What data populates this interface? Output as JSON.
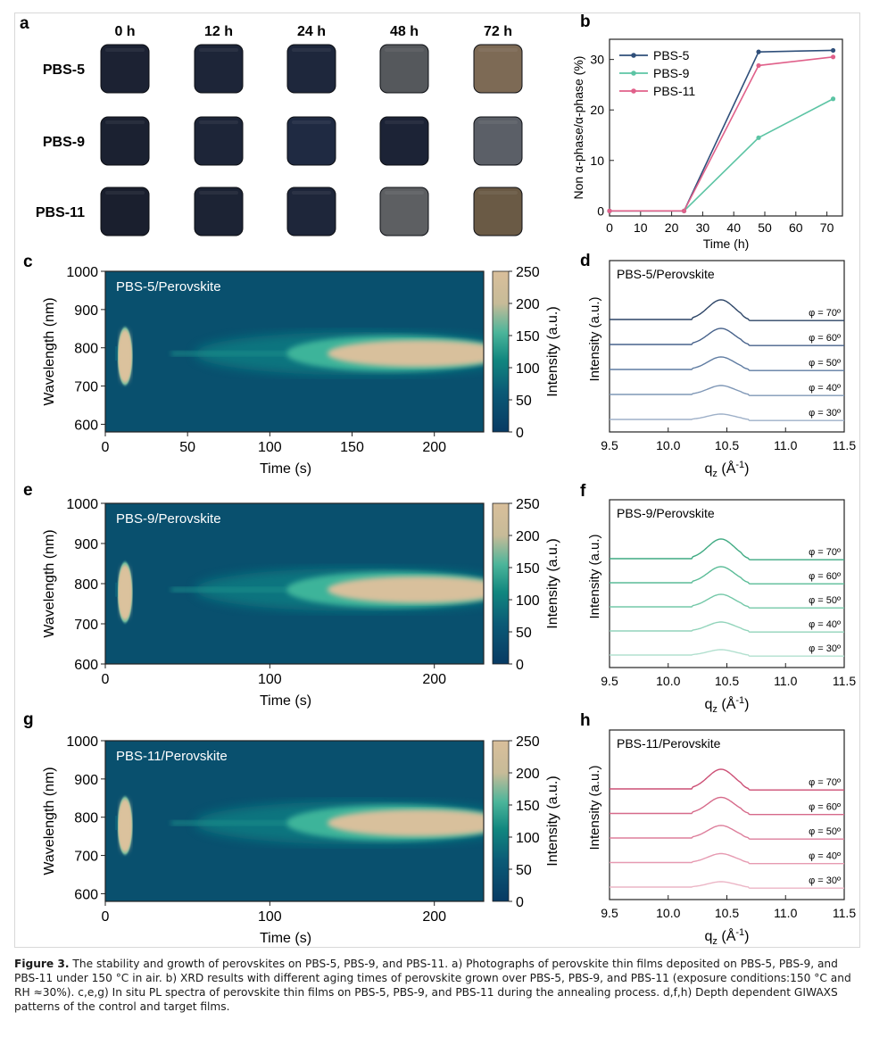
{
  "figure": {
    "caption_label": "Figure 3.",
    "caption_text": "The stability and growth of perovskites on PBS-5, PBS-9, and PBS-11. a) Photographs of perovskite thin films deposited on PBS-5, PBS-9, and PBS-11 under 150 °C in air. b) XRD results with different aging times of perovskite grown over PBS-5, PBS-9, and PBS-11 (exposure conditions:150 °C and RH ≈30%). c,e,g) In situ PL spectra of perovskite thin films on PBS-5, PBS-9, and PBS-11 during the annealing process. d,f,h) Depth dependent GIWAXS patterns of the control and target films."
  },
  "panel_a": {
    "label": "a",
    "times": [
      "0 h",
      "12 h",
      "24 h",
      "48 h",
      "72 h"
    ],
    "rows": [
      "PBS-5",
      "PBS-9",
      "PBS-11"
    ],
    "colors": [
      [
        "#1c2233",
        "#1d2538",
        "#1e273c",
        "#55585c",
        "#7d6a55"
      ],
      [
        "#1b2131",
        "#1d2538",
        "#1f2a42",
        "#1c2336",
        "#5b5f67"
      ],
      [
        "#1a1f2e",
        "#1c2334",
        "#1e263a",
        "#5d5f62",
        "#6a5a45"
      ]
    ]
  },
  "chart_data": [
    {
      "panel": "b",
      "type": "line",
      "xlabel": "Time (h)",
      "ylabel": "Non α-phase/α-phase (%)",
      "xlim": [
        0,
        75
      ],
      "ylim": [
        -1,
        34
      ],
      "xticks": [
        0,
        10,
        20,
        30,
        40,
        50,
        60,
        70
      ],
      "yticks": [
        0,
        10,
        20,
        30
      ],
      "legend": "top-left",
      "series": [
        {
          "name": "PBS-5",
          "color": "#2f4f7a",
          "x": [
            0,
            24,
            48,
            72
          ],
          "y": [
            0,
            0,
            31.5,
            31.8
          ]
        },
        {
          "name": "PBS-9",
          "color": "#5cc4a4",
          "x": [
            0,
            24,
            48,
            72
          ],
          "y": [
            0,
            0,
            14.5,
            22.2
          ]
        },
        {
          "name": "PBS-11",
          "color": "#e0608a",
          "x": [
            0,
            24,
            48,
            72
          ],
          "y": [
            0,
            0,
            28.8,
            30.5
          ]
        }
      ]
    },
    {
      "panel": "c",
      "type": "heatmap",
      "title": "PBS-5/Perovskite",
      "xlabel": "Time (s)",
      "ylabel": "Wavelength (nm)",
      "zlabel": "Intensity (a.u.)",
      "xlim": [
        0,
        230
      ],
      "ylim": [
        580,
        1000
      ],
      "zlim": [
        0,
        250
      ],
      "xticks": [
        0,
        50,
        100,
        150,
        200
      ],
      "yticks": [
        600,
        700,
        800,
        900,
        1000
      ],
      "zticks": [
        0,
        50,
        100,
        150,
        200,
        250
      ]
    },
    {
      "panel": "e",
      "type": "heatmap",
      "title": "PBS-9/Perovskite",
      "xlabel": "Time (s)",
      "ylabel": "Wavelength (nm)",
      "zlabel": "Intensity (a.u.)",
      "xlim": [
        0,
        230
      ],
      "ylim": [
        600,
        1000
      ],
      "zlim": [
        0,
        250
      ],
      "xticks": [
        0,
        100,
        200
      ],
      "yticks": [
        600,
        700,
        800,
        900,
        1000
      ],
      "zticks": [
        0,
        50,
        100,
        150,
        200,
        250
      ]
    },
    {
      "panel": "g",
      "type": "heatmap",
      "title": "PBS-11/Perovskite",
      "xlabel": "Time (s)",
      "ylabel": "Wavelength (nm)",
      "zlabel": "Intensity (a.u.)",
      "xlim": [
        0,
        230
      ],
      "ylim": [
        580,
        1000
      ],
      "zlim": [
        0,
        250
      ],
      "xticks": [
        0,
        100,
        200
      ],
      "yticks": [
        600,
        700,
        800,
        900,
        1000
      ],
      "zticks": [
        0,
        50,
        100,
        150,
        200,
        250
      ]
    },
    {
      "panel": "d",
      "type": "line",
      "title": "PBS-5/Perovskite",
      "xlabel": "q",
      "xlabel_sub": "z",
      "xlabel_unit": " (Å",
      "xlabel_sup": "-1",
      "xlabel_end": ")",
      "ylabel": "Intensity (a.u.)",
      "xlim": [
        9.5,
        11.5
      ],
      "xticks": [
        "9.5",
        "10.0",
        "10.5",
        "11.0",
        "11.5"
      ],
      "angles": [
        "φ = 30º",
        "φ = 40º",
        "φ = 50º",
        "φ = 60º",
        "φ = 70º"
      ],
      "colors": [
        "#9eb0c8",
        "#7f97b6",
        "#5f7ca2",
        "#47628b",
        "#2c4466"
      ]
    },
    {
      "panel": "f",
      "type": "line",
      "title": "PBS-9/Perovskite",
      "xlabel": "q",
      "xlabel_sub": "z",
      "xlabel_unit": " (Å",
      "xlabel_sup": "-1",
      "xlabel_end": ")",
      "ylabel": "Intensity (a.u.)",
      "xlim": [
        9.5,
        11.5
      ],
      "xticks": [
        "9.5",
        "10.0",
        "10.5",
        "11.0",
        "11.5"
      ],
      "angles": [
        "φ = 30º",
        "φ = 40º",
        "φ = 50º",
        "φ = 60º",
        "φ = 70º"
      ],
      "colors": [
        "#b2e0cf",
        "#92d4bb",
        "#74c8a8",
        "#5abc97",
        "#3faa82"
      ]
    },
    {
      "panel": "h",
      "type": "line",
      "title": "PBS-11/Perovskite",
      "xlabel": "q",
      "xlabel_sub": "z",
      "xlabel_unit": " (Å",
      "xlabel_sup": "-1",
      "xlabel_end": ")",
      "ylabel": "Intensity (a.u.)",
      "xlim": [
        9.5,
        11.5
      ],
      "xticks": [
        "9.5",
        "10.0",
        "10.5",
        "11.0",
        "11.5"
      ],
      "angles": [
        "φ = 30º",
        "φ = 40º",
        "φ = 50º",
        "φ = 60º",
        "φ = 70º"
      ],
      "colors": [
        "#ecb6c6",
        "#e69ab1",
        "#dd7f9c",
        "#d66a8a",
        "#cc4f75"
      ]
    }
  ],
  "panel_labels": [
    "b",
    "c",
    "d",
    "e",
    "f",
    "g",
    "h"
  ]
}
